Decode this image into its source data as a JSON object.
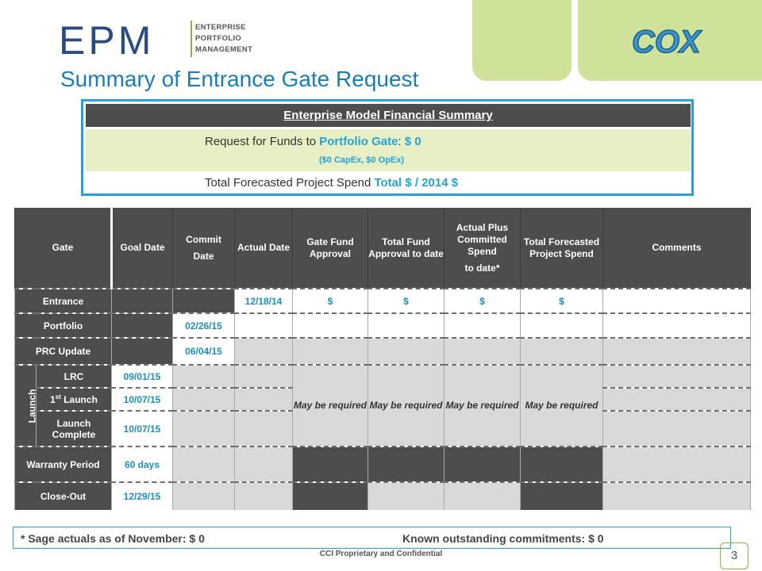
{
  "header": {
    "logo_letters": "EPM",
    "logo_words": [
      "ENTERPRISE",
      "PORTFOLIO",
      "MANAGEMENT"
    ],
    "partner_logo": "COX",
    "title": "Summary of Entrance Gate Request"
  },
  "summary": {
    "heading": "Enterprise Model Financial Summary",
    "request_prefix": "Request for Funds to ",
    "request_gate": "Portfolio Gate",
    "request_suffix": ": ",
    "request_amount": "$ 0",
    "capex_opex": "($0 CapEx, $0 OpEx)",
    "total_prefix": "Total Forecasted Project Spend ",
    "total_value": "Total $  / 2014 $"
  },
  "table": {
    "headers": {
      "gate": "Gate",
      "goal_date": "Goal Date",
      "commit_line1": "Commit",
      "commit_line2": "Date",
      "actual_date": "Actual Date",
      "gate_fund_approval": "Gate Fund Approval",
      "total_fund_approval": "Total Fund Approval to date",
      "actual_plus_line1": "Actual Plus Committed Spend",
      "actual_plus_line2": "to date*",
      "total_forecasted": "Total Forecasted Project Spend",
      "comments": "Comments"
    },
    "launch_group_label": "Launch",
    "may_be_required": "May be required",
    "rows": {
      "entrance": {
        "gate": "Entrance",
        "actual": "12/18/14",
        "gate_fund": "$",
        "total_fund": "$",
        "actual_plus": "$",
        "forecast": "$"
      },
      "portfolio": {
        "gate": "Portfolio",
        "commit": "02/26/15"
      },
      "prc": {
        "gate": "PRC Update",
        "commit": "06/04/15"
      },
      "lrc": {
        "gate": "LRC",
        "goal": "09/01/15"
      },
      "first_launch": {
        "gate_pre": "1",
        "gate_sup": "st",
        "gate_post": " Launch",
        "goal": "10/07/15"
      },
      "launch_complete": {
        "gate": "Launch Complete",
        "goal": "10/07/15"
      },
      "warranty": {
        "gate": "Warranty Period",
        "goal": "60 days"
      },
      "closeout": {
        "gate": "Close-Out",
        "goal": "12/29/15"
      }
    }
  },
  "footer": {
    "sage_actuals": "* Sage actuals as of November:  $ 0",
    "known_commitments": "Known outstanding commitments:  $ 0",
    "confidential": "CCI Proprietary and Confidential",
    "page_number": "3"
  },
  "colors": {
    "accent_blue": "#22a3d9",
    "title_blue": "#1b7db8",
    "logo_navy": "#2b4c7e",
    "green_panel": "#cfe29a",
    "dark_header": "#4d4d4d",
    "light_gray": "#d9d9d9"
  }
}
